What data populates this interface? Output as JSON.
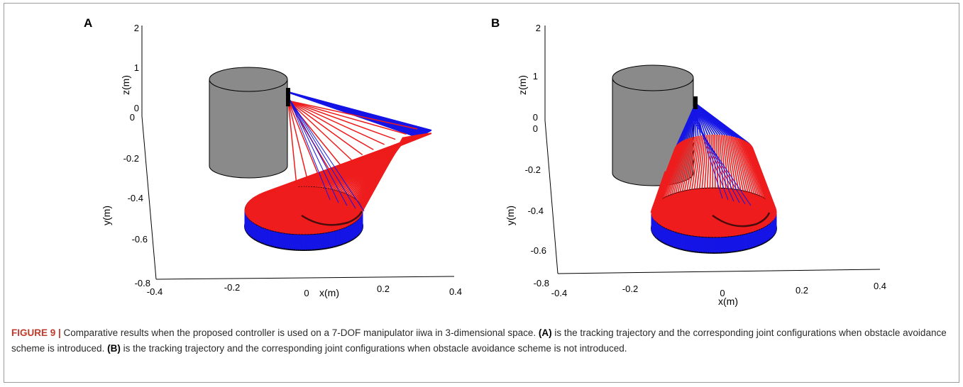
{
  "chart_data": [
    {
      "type": "3d-line",
      "panel_label": "A",
      "xlabel": "x(m)",
      "ylabel": "y(m)",
      "zlabel": "z(m)",
      "x_ticks": [
        "-0.4",
        "-0.2",
        "0",
        "0.2",
        "0.4"
      ],
      "y_ticks": [
        "0",
        "-0.2",
        "-0.4",
        "-0.6",
        "-0.8"
      ],
      "z_ticks": [
        "2",
        "1",
        "0"
      ],
      "series_colors": {
        "red": "#ee1c1c",
        "blue": "#1515e6",
        "trajectory": "#4a0d0d",
        "obstacle": "#8a8a8a"
      }
    },
    {
      "type": "3d-line",
      "panel_label": "B",
      "xlabel": "x(m)",
      "ylabel": "y(m)",
      "zlabel": "z(m)",
      "x_ticks": [
        "-0.4",
        "-0.2",
        "0",
        "0.2",
        "0.4"
      ],
      "y_ticks": [
        "0",
        "-0.2",
        "-0.4",
        "-0.6",
        "-0.8"
      ],
      "z_ticks": [
        "2",
        "1",
        "0"
      ],
      "series_colors": {
        "red": "#ee1c1c",
        "blue": "#1515e6",
        "trajectory": "#4a0d0d",
        "obstacle": "#8a8a8a"
      }
    }
  ],
  "caption": {
    "label": "FIGURE 9 |",
    "text1": " Comparative results when the proposed controller is used on a 7-DOF manipulator iiwa in 3-dimensional space. ",
    "ref_a": "(A)",
    "text2": " is the tracking trajectory and the corresponding joint configurations when obstacle avoidance scheme is introduced. ",
    "ref_b": "(B)",
    "text3": " is the tracking trajectory and the corresponding joint configurations when obstacle avoidance scheme is not introduced."
  }
}
